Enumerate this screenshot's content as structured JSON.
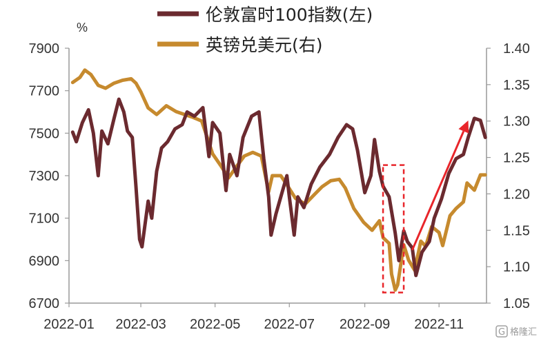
{
  "chart_data": {
    "type": "line",
    "y_unit_label": "%",
    "x_tick_labels": [
      "2022-01",
      "2022-03",
      "2022-05",
      "2022-07",
      "2022-09",
      "2022-11"
    ],
    "ylim_left": [
      6700,
      7900
    ],
    "yticks_left": [
      "7900",
      "7700",
      "7500",
      "7300",
      "7100",
      "6900",
      "6700"
    ],
    "ylim_right": [
      1.05,
      1.4
    ],
    "yticks_right": [
      "1.40",
      "1.35",
      "1.30",
      "1.25",
      "1.20",
      "1.15",
      "1.10",
      "1.05"
    ],
    "grid": false,
    "legend_position": "top",
    "series": [
      {
        "name": "伦敦富时100指数(左)",
        "axis": "left",
        "color": "#6b2a2f",
        "points": [
          [
            "2022-01-04",
            7505
          ],
          [
            "2022-01-07",
            7460
          ],
          [
            "2022-01-12",
            7550
          ],
          [
            "2022-01-17",
            7610
          ],
          [
            "2022-01-21",
            7500
          ],
          [
            "2022-01-25",
            7300
          ],
          [
            "2022-01-28",
            7510
          ],
          [
            "2022-02-02",
            7450
          ],
          [
            "2022-02-07",
            7570
          ],
          [
            "2022-02-11",
            7660
          ],
          [
            "2022-02-15",
            7600
          ],
          [
            "2022-02-18",
            7510
          ],
          [
            "2022-02-22",
            7480
          ],
          [
            "2022-02-25",
            7250
          ],
          [
            "2022-02-28",
            7000
          ],
          [
            "2022-03-02",
            6965
          ],
          [
            "2022-03-07",
            7180
          ],
          [
            "2022-03-10",
            7100
          ],
          [
            "2022-03-14",
            7320
          ],
          [
            "2022-03-18",
            7430
          ],
          [
            "2022-03-23",
            7460
          ],
          [
            "2022-03-29",
            7520
          ],
          [
            "2022-04-04",
            7540
          ],
          [
            "2022-04-08",
            7600
          ],
          [
            "2022-04-14",
            7580
          ],
          [
            "2022-04-21",
            7620
          ],
          [
            "2022-04-26",
            7390
          ],
          [
            "2022-04-29",
            7550
          ],
          [
            "2022-05-05",
            7500
          ],
          [
            "2022-05-10",
            7230
          ],
          [
            "2022-05-13",
            7400
          ],
          [
            "2022-05-19",
            7300
          ],
          [
            "2022-05-24",
            7480
          ],
          [
            "2022-05-31",
            7580
          ],
          [
            "2022-06-06",
            7600
          ],
          [
            "2022-06-10",
            7380
          ],
          [
            "2022-06-14",
            7200
          ],
          [
            "2022-06-16",
            7020
          ],
          [
            "2022-06-20",
            7120
          ],
          [
            "2022-06-24",
            7200
          ],
          [
            "2022-06-29",
            7300
          ],
          [
            "2022-07-01",
            7200
          ],
          [
            "2022-07-05",
            7020
          ],
          [
            "2022-07-08",
            7200
          ],
          [
            "2022-07-13",
            7150
          ],
          [
            "2022-07-19",
            7260
          ],
          [
            "2022-07-26",
            7340
          ],
          [
            "2022-08-03",
            7400
          ],
          [
            "2022-08-10",
            7480
          ],
          [
            "2022-08-17",
            7540
          ],
          [
            "2022-08-22",
            7520
          ],
          [
            "2022-08-26",
            7420
          ],
          [
            "2022-09-01",
            7220
          ],
          [
            "2022-09-06",
            7300
          ],
          [
            "2022-09-09",
            7470
          ],
          [
            "2022-09-13",
            7320
          ],
          [
            "2022-09-16",
            7250
          ],
          [
            "2022-09-21",
            7200
          ],
          [
            "2022-09-26",
            7030
          ],
          [
            "2022-09-29",
            6900
          ],
          [
            "2022-10-03",
            7040
          ],
          [
            "2022-10-06",
            6990
          ],
          [
            "2022-10-10",
            6960
          ],
          [
            "2022-10-13",
            6830
          ],
          [
            "2022-10-18",
            6940
          ],
          [
            "2022-10-24",
            6990
          ],
          [
            "2022-10-28",
            7100
          ],
          [
            "2022-11-03",
            7190
          ],
          [
            "2022-11-09",
            7310
          ],
          [
            "2022-11-15",
            7380
          ],
          [
            "2022-11-21",
            7400
          ],
          [
            "2022-11-25",
            7480
          ],
          [
            "2022-11-30",
            7570
          ],
          [
            "2022-12-05",
            7560
          ],
          [
            "2022-12-09",
            7480
          ]
        ]
      },
      {
        "name": "英镑兑美元(右)",
        "axis": "right",
        "color": "#c68a2e",
        "points": [
          [
            "2022-01-04",
            1.353
          ],
          [
            "2022-01-10",
            1.36
          ],
          [
            "2022-01-14",
            1.37
          ],
          [
            "2022-01-19",
            1.364
          ],
          [
            "2022-01-25",
            1.349
          ],
          [
            "2022-01-31",
            1.345
          ],
          [
            "2022-02-07",
            1.352
          ],
          [
            "2022-02-14",
            1.356
          ],
          [
            "2022-02-21",
            1.358
          ],
          [
            "2022-02-25",
            1.352
          ],
          [
            "2022-03-01",
            1.34
          ],
          [
            "2022-03-07",
            1.318
          ],
          [
            "2022-03-14",
            1.309
          ],
          [
            "2022-03-22",
            1.321
          ],
          [
            "2022-03-30",
            1.313
          ],
          [
            "2022-04-06",
            1.309
          ],
          [
            "2022-04-13",
            1.305
          ],
          [
            "2022-04-20",
            1.3
          ],
          [
            "2022-04-25",
            1.275
          ],
          [
            "2022-04-29",
            1.255
          ],
          [
            "2022-05-06",
            1.238
          ],
          [
            "2022-05-12",
            1.222
          ],
          [
            "2022-05-18",
            1.236
          ],
          [
            "2022-05-25",
            1.252
          ],
          [
            "2022-06-01",
            1.257
          ],
          [
            "2022-06-08",
            1.252
          ],
          [
            "2022-06-14",
            1.203
          ],
          [
            "2022-06-17",
            1.225
          ],
          [
            "2022-06-24",
            1.225
          ],
          [
            "2022-06-30",
            1.21
          ],
          [
            "2022-07-06",
            1.194
          ],
          [
            "2022-07-14",
            1.186
          ],
          [
            "2022-07-21",
            1.198
          ],
          [
            "2022-07-28",
            1.21
          ],
          [
            "2022-08-04",
            1.218
          ],
          [
            "2022-08-11",
            1.22
          ],
          [
            "2022-08-16",
            1.208
          ],
          [
            "2022-08-23",
            1.18
          ],
          [
            "2022-08-31",
            1.161
          ],
          [
            "2022-09-07",
            1.15
          ],
          [
            "2022-09-13",
            1.163
          ],
          [
            "2022-09-16",
            1.14
          ],
          [
            "2022-09-21",
            1.132
          ],
          [
            "2022-09-23",
            1.09
          ],
          [
            "2022-09-26",
            1.068
          ],
          [
            "2022-09-28",
            1.075
          ],
          [
            "2022-10-03",
            1.13
          ],
          [
            "2022-10-07",
            1.109
          ],
          [
            "2022-10-12",
            1.095
          ],
          [
            "2022-10-17",
            1.135
          ],
          [
            "2022-10-21",
            1.128
          ],
          [
            "2022-10-26",
            1.155
          ],
          [
            "2022-11-01",
            1.147
          ],
          [
            "2022-11-04",
            1.129
          ],
          [
            "2022-11-10",
            1.17
          ],
          [
            "2022-11-15",
            1.18
          ],
          [
            "2022-11-21",
            1.189
          ],
          [
            "2022-11-24",
            1.215
          ],
          [
            "2022-11-30",
            1.205
          ],
          [
            "2022-12-05",
            1.226
          ],
          [
            "2022-12-09",
            1.226
          ]
        ]
      }
    ],
    "annotations": {
      "dashed_box": {
        "x_start": "2022-09-16",
        "x_end": "2022-10-03",
        "y_top": 7350,
        "y_bottom": 6750,
        "axis": "left",
        "color": "#e8252a"
      },
      "arrow": {
        "from": [
          "2022-10-10",
          6950
        ],
        "to": [
          "2022-11-25",
          7560
        ],
        "axis": "left",
        "color": "#e8252a"
      }
    }
  },
  "watermark": {
    "text": "格隆汇",
    "logo": "G"
  }
}
